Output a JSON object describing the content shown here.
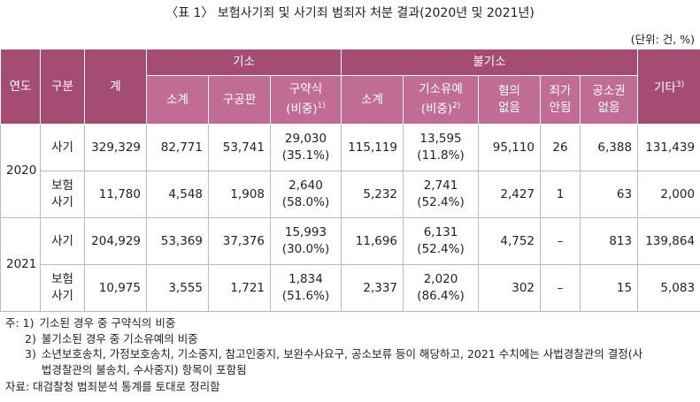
{
  "title": "〈표 1〉 보험사기죄 및 사기죄 범죄자 처분 결과(2020년 및 2021년)",
  "unit": "(단위: 건, %)",
  "header": {
    "year": "연도",
    "type": "구분",
    "total": "계",
    "indict": "기소",
    "nonindict": "불기소",
    "other": {
      "text": "기타",
      "sup": "3)"
    },
    "indict_sub": [
      {
        "lines": [
          "소계"
        ]
      },
      {
        "lines": [
          "구공판"
        ]
      },
      {
        "lines": [
          "구약식",
          "(비중)"
        ],
        "sup": "1)"
      }
    ],
    "nonindict_sub": [
      {
        "lines": [
          "소계"
        ]
      },
      {
        "lines": [
          "기소유예",
          "(비중)"
        ],
        "sup": "2)"
      },
      {
        "lines": [
          "혐의",
          "없음"
        ]
      },
      {
        "lines": [
          "죄가",
          "안됨"
        ]
      },
      {
        "lines": [
          "공소권",
          "없음"
        ]
      }
    ]
  },
  "rows": [
    {
      "year": "2020",
      "groups": [
        {
          "type": [
            "사기"
          ],
          "cells": [
            [
              "329,329"
            ],
            [
              "82,771"
            ],
            [
              "53,741"
            ],
            [
              "29,030",
              "(35.1%)"
            ],
            [
              "115,119"
            ],
            [
              "13,595",
              "(11.8%)"
            ],
            [
              "95,110"
            ],
            [
              "26"
            ],
            [
              "6,388"
            ],
            [
              "131,439"
            ]
          ]
        },
        {
          "type": [
            "보험",
            "사기"
          ],
          "cells": [
            [
              "11,780"
            ],
            [
              "4,548"
            ],
            [
              "1,908"
            ],
            [
              "2,640",
              "(58.0%)"
            ],
            [
              "5,232"
            ],
            [
              "2,741",
              "(52.4%)"
            ],
            [
              "2,427"
            ],
            [
              "1"
            ],
            [
              "63"
            ],
            [
              "2,000"
            ]
          ]
        }
      ]
    },
    {
      "year": "2021",
      "groups": [
        {
          "type": [
            "사기"
          ],
          "cells": [
            [
              "204,929"
            ],
            [
              "53,369"
            ],
            [
              "37,376"
            ],
            [
              "15,993",
              "(30.0%)"
            ],
            [
              "11,696"
            ],
            [
              "6,131",
              "(52.4%)"
            ],
            [
              "4,752"
            ],
            [
              "–"
            ],
            [
              "813"
            ],
            [
              "139,864"
            ]
          ]
        },
        {
          "type": [
            "보험",
            "사기"
          ],
          "cells": [
            [
              "10,975"
            ],
            [
              "3,555"
            ],
            [
              "1,721"
            ],
            [
              "1,834",
              "(51.6%)"
            ],
            [
              "2,337"
            ],
            [
              "2,020",
              "(86.4%)"
            ],
            [
              "302"
            ],
            [
              "–"
            ],
            [
              "15"
            ],
            [
              "5,083"
            ]
          ]
        }
      ]
    }
  ],
  "notes": [
    {
      "marker": "주: 1)",
      "lines": [
        "기소된 경우 중 구약식의 비중"
      ]
    },
    {
      "marker": "2)",
      "lines": [
        "불기소된 경우 중 기소유예의 비중"
      ]
    },
    {
      "marker": "3)",
      "lines": [
        "소년보호송치, 가정보호송치, 기소중지, 참고인중지, 보완수사요구, 공소보류 등이 해당하고, 2021 수치에는 사법경찰관의 결정(사",
        "법경찰관의 불송치, 수사중지) 항목이 포함됨"
      ]
    }
  ],
  "source": "자료: 대검찰청 범죄분석 통계를 토대로 정리함"
}
